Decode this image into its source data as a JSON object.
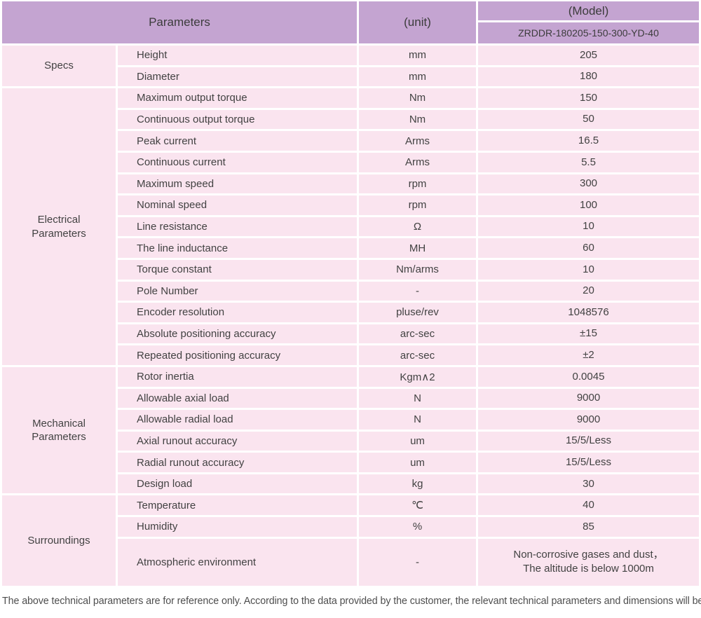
{
  "table": {
    "header": {
      "parameters_label": "Parameters",
      "unit_label": "(unit)",
      "model_label": "(Model)",
      "model_value": "ZRDDR-180205-150-300-YD-40"
    },
    "sections": [
      {
        "name": "Specs",
        "rows": [
          [
            "Height",
            "mm",
            "205"
          ],
          [
            "Diameter",
            "mm",
            "180"
          ]
        ]
      },
      {
        "name": "Electrical Parameters",
        "rows": [
          [
            "Maximum output torque",
            "Nm",
            "150"
          ],
          [
            "Continuous output torque",
            "Nm",
            "50"
          ],
          [
            "Peak current",
            "Arms",
            "16.5"
          ],
          [
            "Continuous current",
            "Arms",
            "5.5"
          ],
          [
            "Maximum speed",
            "rpm",
            "300"
          ],
          [
            "Nominal speed",
            "rpm",
            "100"
          ],
          [
            "Line resistance",
            "Ω",
            "10"
          ],
          [
            "The line inductance",
            "MH",
            "60"
          ],
          [
            "Torque constant",
            "Nm/arms",
            "10"
          ],
          [
            "Pole Number",
            "-",
            "20"
          ],
          [
            "Encoder resolution",
            "pluse/rev",
            "1048576"
          ],
          [
            "Absolute positioning accuracy",
            "arc-sec",
            "±15"
          ],
          [
            "Repeated positioning accuracy",
            "arc-sec",
            "±2"
          ]
        ]
      },
      {
        "name": "Mechanical Parameters",
        "rows": [
          [
            "Rotor inertia",
            "Kgm∧2",
            "0.0045"
          ],
          [
            "Allowable axial load",
            "N",
            "9000"
          ],
          [
            "Allowable radial load",
            "N",
            "9000"
          ],
          [
            "Axial runout accuracy",
            "um",
            "15/5/Less"
          ],
          [
            "Radial runout accuracy",
            "um",
            "15/5/Less"
          ],
          [
            "Design load",
            "kg",
            "30"
          ]
        ]
      },
      {
        "name": "Surroundings",
        "rows": [
          [
            "Temperature",
            "℃",
            "40"
          ],
          [
            "Humidity",
            "%",
            "85"
          ],
          [
            "Atmospheric environment",
            "-",
            "Non-corrosive gases and dust，\nThe altitude is below 1000m"
          ]
        ]
      }
    ],
    "footer_note": "The above technical parameters are for reference only. According to the data provided by the customer, the relevant technical parameters and dimensions will be issued."
  },
  "colors": {
    "header_bg": "#c4a4d1",
    "row_bg": "#fae4ef",
    "text": "#424242"
  }
}
